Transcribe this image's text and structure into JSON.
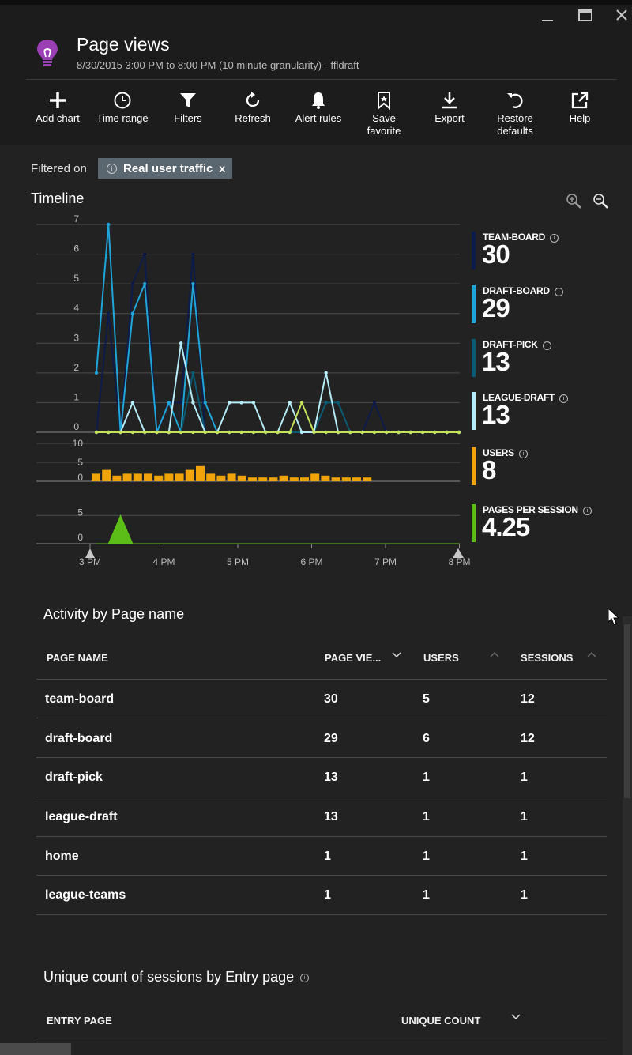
{
  "header": {
    "title": "Page views",
    "subtitle": "8/30/2015 3:00 PM to 8:00 PM (10 minute granularity) - ffldraft",
    "app_icon": "lightbulb-icon",
    "window_buttons": [
      "minimize-icon",
      "maximize-icon",
      "close-icon"
    ]
  },
  "toolbar": {
    "items": [
      {
        "label": "Add chart",
        "icon": "plus-icon"
      },
      {
        "label": "Time range",
        "icon": "clock-icon"
      },
      {
        "label": "Filters",
        "icon": "filter-icon"
      },
      {
        "label": "Refresh",
        "icon": "refresh-icon"
      },
      {
        "label": "Alert rules",
        "icon": "bell-icon"
      },
      {
        "label": "Save\nfavorite",
        "icon": "bookmark-icon"
      },
      {
        "label": "Export",
        "icon": "download-icon"
      },
      {
        "label": "Restore\ndefaults",
        "icon": "undo-icon"
      },
      {
        "label": "Help",
        "icon": "external-link-icon"
      }
    ]
  },
  "filter": {
    "label": "Filtered on",
    "chip_text": "Real user traffic",
    "chip_close": "x"
  },
  "timeline": {
    "title": "Timeline",
    "zoom_in_icon": "zoom-in-icon",
    "zoom_out_icon": "zoom-out-icon",
    "legend": [
      {
        "label": "TEAM-BOARD",
        "value": "30",
        "color": "#0c1b4a"
      },
      {
        "label": "DRAFT-BOARD",
        "value": "29",
        "color": "#1fa5d9"
      },
      {
        "label": "DRAFT-PICK",
        "value": "13",
        "color": "#0b5a73"
      },
      {
        "label": "LEAGUE-DRAFT",
        "value": "13",
        "color": "#b6ecf8"
      },
      {
        "label": "USERS",
        "value": "8",
        "color": "#f0a30a"
      },
      {
        "label": "PAGES PER SESSION",
        "value": "4.25",
        "color": "#5cbd19"
      }
    ]
  },
  "chart_data": [
    {
      "type": "line",
      "title": "",
      "x": [
        "3:00",
        "3:10",
        "3:20",
        "3:30",
        "3:40",
        "3:50",
        "4:00",
        "4:10",
        "4:20",
        "4:30",
        "4:40",
        "4:50",
        "5:00",
        "5:10",
        "5:20",
        "5:30",
        "5:40",
        "5:50",
        "6:00",
        "6:10",
        "6:20",
        "6:30",
        "6:40",
        "6:50",
        "7:00",
        "7:10",
        "7:20",
        "7:30",
        "7:40",
        "7:50",
        "8:00"
      ],
      "xticks": [
        "3 PM",
        "4 PM",
        "5 PM",
        "6 PM",
        "7 PM",
        "8 PM"
      ],
      "yticks": [
        0,
        1,
        2,
        3,
        4,
        5,
        6,
        7
      ],
      "ylim": [
        0,
        7
      ],
      "grid": true,
      "series": [
        {
          "name": "TEAM-BOARD",
          "color": "#0c1b4a",
          "values": [
            0,
            4,
            0,
            5,
            6,
            0,
            1,
            1,
            6,
            0,
            0,
            0,
            0,
            0,
            0,
            0,
            0,
            0,
            0,
            0,
            0,
            0,
            0,
            1,
            0,
            0,
            0,
            0,
            0,
            0,
            0
          ]
        },
        {
          "name": "DRAFT-BOARD",
          "color": "#1fa5d9",
          "values": [
            2,
            7,
            0,
            4,
            5,
            0,
            1,
            0,
            5,
            1,
            0,
            0,
            0,
            0,
            0,
            0,
            0,
            0,
            0,
            0,
            0,
            0,
            0,
            0,
            0,
            0,
            0,
            0,
            0,
            0,
            0
          ]
        },
        {
          "name": "DRAFT-PICK",
          "color": "#0b5a73",
          "values": [
            0,
            0,
            0,
            0,
            0,
            0,
            0,
            0,
            2,
            0,
            0,
            0,
            0,
            0,
            0,
            0,
            0,
            0,
            0,
            1,
            1,
            0,
            0,
            0,
            0,
            0,
            0,
            0,
            0,
            0,
            0
          ]
        },
        {
          "name": "LEAGUE-DRAFT",
          "color": "#b6ecf8",
          "values": [
            0,
            0,
            0,
            1,
            0,
            0,
            0,
            3,
            1,
            0,
            0,
            1,
            1,
            1,
            0,
            0,
            1,
            0,
            0,
            2,
            0,
            0,
            0,
            0,
            0,
            0,
            0,
            0,
            0,
            0,
            0
          ]
        },
        {
          "name": "",
          "color": "#c6e25a",
          "values": [
            0,
            0,
            0,
            0,
            0,
            0,
            0,
            0,
            0,
            0,
            0,
            0,
            0,
            0,
            0,
            0,
            0,
            1,
            0,
            0,
            0,
            0,
            0,
            0,
            0,
            0,
            0,
            0,
            0,
            0,
            0
          ]
        }
      ]
    },
    {
      "type": "bar",
      "title": "",
      "yticks": [
        0,
        5,
        10
      ],
      "ylim": [
        0,
        10
      ],
      "series": [
        {
          "name": "USERS",
          "color": "#f0a30a",
          "values": [
            2,
            3,
            1.5,
            2,
            2,
            2,
            1.5,
            2,
            2,
            3,
            4,
            2,
            1.5,
            2,
            1.5,
            1,
            1,
            1,
            1.5,
            1,
            1,
            2,
            1.5,
            1,
            1,
            1,
            1
          ]
        }
      ]
    },
    {
      "type": "area",
      "title": "",
      "yticks": [
        0,
        5
      ],
      "ylim": [
        0,
        7
      ],
      "series": [
        {
          "name": "PAGES PER SESSION",
          "color": "#5cbd19",
          "values": [
            0,
            0,
            5,
            0,
            0,
            0,
            0,
            0,
            0,
            0,
            0,
            0,
            0,
            0,
            0,
            0,
            0,
            0,
            0,
            0,
            0,
            0,
            0,
            0,
            0,
            0,
            0,
            0,
            0,
            0,
            0
          ]
        }
      ]
    }
  ],
  "activity_table": {
    "title": "Activity by Page name",
    "columns": [
      "PAGE NAME",
      "PAGE VIE...",
      "USERS",
      "SESSIONS"
    ],
    "rows": [
      [
        "team-board",
        "30",
        "5",
        "12"
      ],
      [
        "draft-board",
        "29",
        "6",
        "12"
      ],
      [
        "draft-pick",
        "13",
        "1",
        "1"
      ],
      [
        "league-draft",
        "13",
        "1",
        "1"
      ],
      [
        "home",
        "1",
        "1",
        "1"
      ],
      [
        "league-teams",
        "1",
        "1",
        "1"
      ]
    ]
  },
  "entry_table": {
    "title": "Unique count of sessions by Entry page",
    "columns": [
      "ENTRY PAGE",
      "UNIQUE COUNT"
    ]
  }
}
